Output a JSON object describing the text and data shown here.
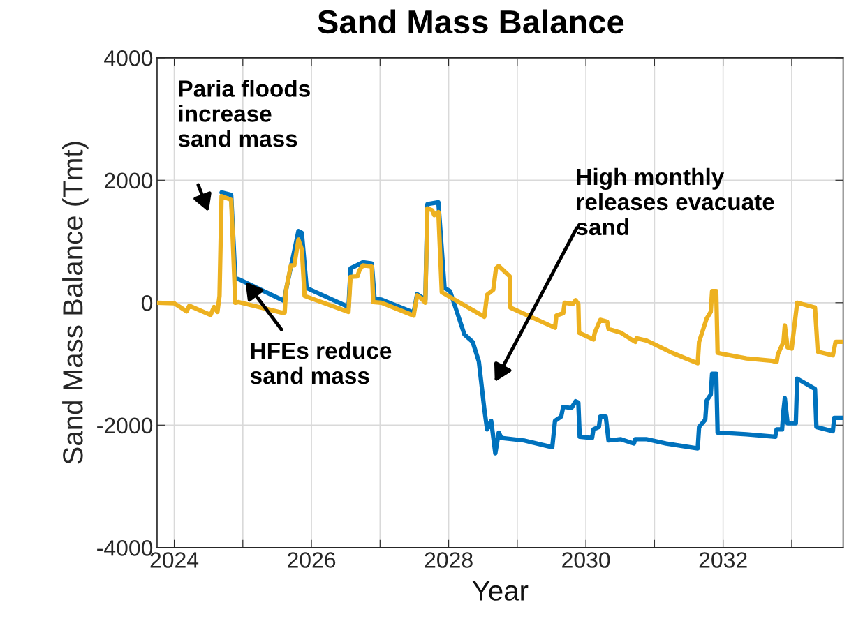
{
  "chart_data": {
    "type": "line",
    "title": "Sand Mass Balance",
    "xlabel": "Year",
    "ylabel": "Sand Mass Balance (Tmt)",
    "xlim": [
      2023.75,
      2033.75
    ],
    "xticks": [
      2024,
      {
        "value": 2025,
        "label": null
      },
      2026,
      {
        "value": 2027,
        "label": null
      },
      2028,
      {
        "value": 2029,
        "label": null
      },
      2030,
      {
        "value": 2031,
        "label": null
      },
      2032,
      {
        "value": 2033,
        "label": null
      }
    ],
    "ylim": [
      -4000,
      4000
    ],
    "yticks": [
      -4000,
      -2000,
      0,
      2000,
      4000
    ],
    "grid": true,
    "marker": "none",
    "line_style": "solid",
    "series": [
      {
        "color": "#0072bd",
        "x": [
          2024.69,
          2024.83,
          2024.89,
          2024.95,
          2025.6,
          2025.63,
          2025.81,
          2025.86,
          2025.93,
          2026.54,
          2026.57,
          2026.75,
          2026.88,
          2026.92,
          2027.02,
          2027.49,
          2027.54,
          2027.66,
          2027.69,
          2027.85,
          2027.94,
          2028.02,
          2028.23,
          2028.35,
          2028.44,
          2028.52,
          2028.56,
          2028.62,
          2028.68,
          2028.73,
          2028.77,
          2029.1,
          2029.51,
          2029.55,
          2029.64,
          2029.67,
          2029.79,
          2029.85,
          2029.89,
          2029.91,
          2030.09,
          2030.11,
          2030.19,
          2030.21,
          2030.29,
          2030.33,
          2030.51,
          2030.7,
          2030.72,
          2030.89,
          2031.17,
          2031.63,
          2031.65,
          2031.74,
          2031.76,
          2031.82,
          2031.84,
          2031.9,
          2031.92,
          2032.34,
          2032.76,
          2032.78,
          2032.86,
          2032.88,
          2032.9,
          2032.94,
          2033.06,
          2033.08,
          2033.34,
          2033.36,
          2033.6,
          2033.62,
          2033.74
        ],
        "values": [
          1800,
          1760,
          400,
          380,
          30,
          210,
          1170,
          1140,
          240,
          -70,
          560,
          660,
          640,
          60,
          50,
          -160,
          140,
          50,
          1610,
          1640,
          240,
          190,
          -520,
          -640,
          -960,
          -1740,
          -2070,
          -1930,
          -2460,
          -2120,
          -2210,
          -2250,
          -2360,
          -1930,
          -1860,
          -1700,
          -1720,
          -1610,
          -1630,
          -2190,
          -2210,
          -2070,
          -2030,
          -1860,
          -1860,
          -2250,
          -2230,
          -2300,
          -2230,
          -2230,
          -2300,
          -2380,
          -2030,
          -1910,
          -1600,
          -1500,
          -1160,
          -1160,
          -2120,
          -2150,
          -2190,
          -2070,
          -2070,
          -1760,
          -1560,
          -1970,
          -1970,
          -1240,
          -1410,
          -2030,
          -2100,
          -1880,
          -1880
        ]
      },
      {
        "color": "#edb120",
        "x": [
          2023.75,
          2024.0,
          2024.18,
          2024.22,
          2024.53,
          2024.58,
          2024.63,
          2024.66,
          2024.69,
          2024.83,
          2024.89,
          2024.94,
          2025.56,
          2025.61,
          2025.63,
          2025.7,
          2025.75,
          2025.81,
          2025.86,
          2025.9,
          2026.54,
          2026.57,
          2026.67,
          2026.7,
          2026.75,
          2026.88,
          2026.9,
          2027.02,
          2027.49,
          2027.54,
          2027.61,
          2027.66,
          2027.69,
          2027.76,
          2027.79,
          2027.85,
          2027.9,
          2028.52,
          2028.56,
          2028.65,
          2028.69,
          2028.73,
          2028.89,
          2028.9,
          2029.55,
          2029.57,
          2029.67,
          2029.69,
          2029.81,
          2029.85,
          2029.89,
          2029.9,
          2030.11,
          2030.13,
          2030.21,
          2030.31,
          2030.33,
          2030.51,
          2030.72,
          2030.74,
          2030.89,
          2031.26,
          2031.63,
          2031.65,
          2031.76,
          2031.82,
          2031.84,
          2031.9,
          2031.92,
          2032.34,
          2032.72,
          2032.78,
          2032.8,
          2032.88,
          2032.9,
          2032.94,
          2033.0,
          2033.08,
          2033.34,
          2033.38,
          2033.6,
          2033.64,
          2033.74
        ],
        "values": [
          0,
          -10,
          -140,
          -50,
          -200,
          -70,
          -150,
          110,
          1740,
          1680,
          0,
          10,
          -160,
          -160,
          210,
          610,
          610,
          1030,
          870,
          110,
          -150,
          420,
          430,
          530,
          610,
          590,
          10,
          0,
          -210,
          120,
          60,
          0,
          1540,
          1510,
          1430,
          1480,
          170,
          -230,
          130,
          210,
          560,
          600,
          430,
          -80,
          -410,
          -210,
          -170,
          0,
          -20,
          40,
          -20,
          -490,
          -600,
          -490,
          -280,
          -310,
          -430,
          -490,
          -640,
          -580,
          -620,
          -820,
          -990,
          -640,
          -260,
          -150,
          190,
          190,
          -820,
          -910,
          -950,
          -970,
          -840,
          -640,
          -370,
          -730,
          -750,
          0,
          -80,
          -800,
          -860,
          -640,
          -640
        ]
      }
    ],
    "annotations": [
      "Paria floods\nincrease\nsand mass",
      {
        "text": "HFEs reduce\nsand mass",
        "x": 2025.02,
        "y": 370
      },
      "High monthly\nreleases evacuate\nsand"
    ]
  }
}
